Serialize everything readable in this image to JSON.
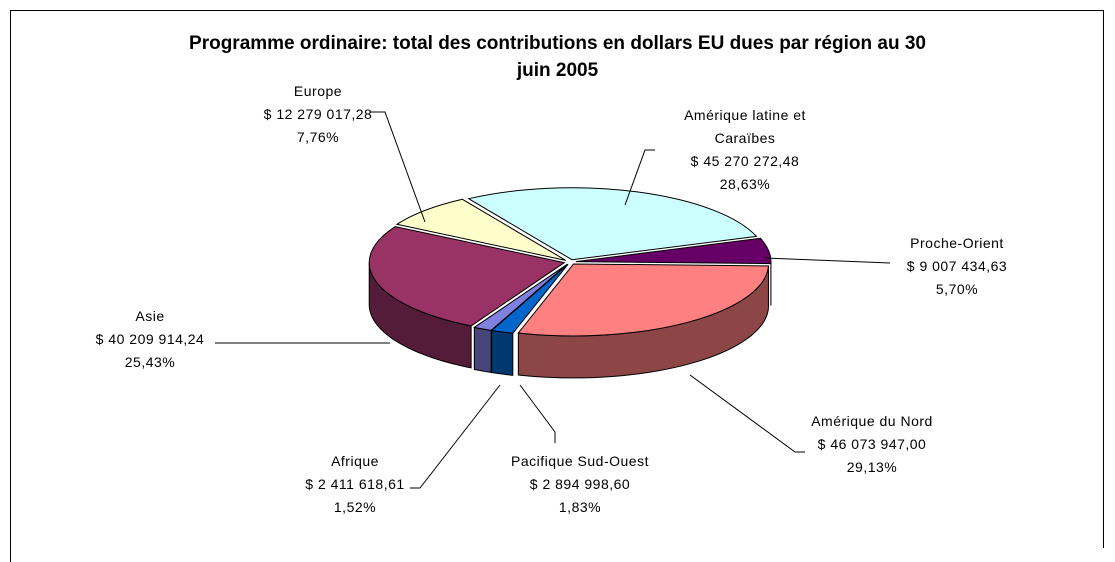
{
  "chart_data": {
    "type": "pie3d",
    "title": "Programme ordinaire: total des contributions en dollars EU dues par région au 30 juin 2005",
    "categories": [
      "Amérique latine et Caraïbes",
      "Proche-Orient",
      "Amérique du Nord",
      "Pacifique Sud-Ouest",
      "Afrique",
      "Asie",
      "Europe"
    ],
    "values": [
      45270272.48,
      9007434.63,
      46073947.0,
      2894998.6,
      2411618.61,
      40209914.24,
      12279017.28
    ],
    "value_labels": [
      "$ 45 270 272,48",
      "$ 9 007 434,63",
      "$ 46 073 947,00",
      "$ 2 894 998,60",
      "$ 2 411 618,61",
      "$ 40 209 914,24",
      "$ 12 279 017,28"
    ],
    "percents": [
      28.63,
      5.7,
      29.13,
      1.83,
      1.52,
      25.43,
      7.76
    ],
    "percent_labels": [
      "28,63%",
      "5,70%",
      "29,13%",
      "1,83%",
      "1,52%",
      "25,43%",
      "7,76%"
    ],
    "colors": [
      "#ccffff",
      "#660066",
      "#ff8080",
      "#0066cc",
      "#8080e0",
      "#993366",
      "#ffffcc"
    ]
  }
}
